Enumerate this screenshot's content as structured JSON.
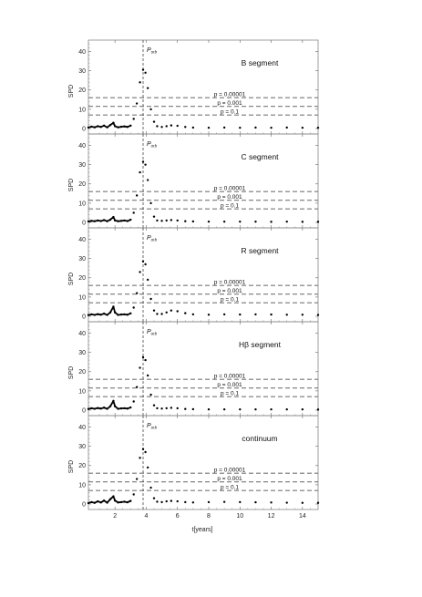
{
  "figure": {
    "xlabel": "t[years]",
    "ylabel": "SPD",
    "x_ticks": [
      "2",
      "4",
      "6",
      "8",
      "10",
      "12",
      "14"
    ],
    "y_ticks": [
      "0",
      "10",
      "20",
      "30",
      "40"
    ],
    "porb_label": "P",
    "porb_sub": "orb",
    "threshold_labels": [
      "p = 0.00001",
      "p = 0.001",
      "p = 0.1"
    ]
  },
  "chart_data": [
    {
      "type": "line",
      "title": "B segment",
      "xlim": [
        0.3,
        15
      ],
      "ylim": [
        0,
        45
      ],
      "porb": 3.8,
      "thresholds": [
        {
          "label": "p = 0.00001",
          "y": 16.0
        },
        {
          "label": "p = 0.001",
          "y": 11.5
        },
        {
          "label": "p = 0.1",
          "y": 7.0
        }
      ],
      "series": [
        {
          "values": [
            [
              0.3,
              0.5
            ],
            [
              0.5,
              1.0
            ],
            [
              0.7,
              0.6
            ],
            [
              0.9,
              1.2
            ],
            [
              1.1,
              0.8
            ],
            [
              1.3,
              1.5
            ],
            [
              1.5,
              0.6
            ],
            [
              1.7,
              1.8
            ],
            [
              1.9,
              3.0
            ],
            [
              2.0,
              1.2
            ],
            [
              2.2,
              0.6
            ],
            [
              2.4,
              0.9
            ],
            [
              2.6,
              1.1
            ],
            [
              2.8,
              0.8
            ],
            [
              3.0,
              1.5
            ],
            [
              3.2,
              5.0
            ],
            [
              3.4,
              13.0
            ],
            [
              3.6,
              24.0
            ],
            [
              3.8,
              30.5
            ],
            [
              3.95,
              29.0
            ],
            [
              4.1,
              21.0
            ],
            [
              4.3,
              10.0
            ],
            [
              4.5,
              3.5
            ],
            [
              4.7,
              1.2
            ],
            [
              5.0,
              0.8
            ],
            [
              5.3,
              1.2
            ],
            [
              5.6,
              1.6
            ],
            [
              6.0,
              1.4
            ],
            [
              6.5,
              0.8
            ],
            [
              7.0,
              0.5
            ],
            [
              8.0,
              0.4
            ],
            [
              9.0,
              0.5
            ],
            [
              10.0,
              0.4
            ],
            [
              11.0,
              0.5
            ],
            [
              12.0,
              0.4
            ],
            [
              13.0,
              0.5
            ],
            [
              14.0,
              0.4
            ],
            [
              15.0,
              0.4
            ]
          ]
        }
      ]
    },
    {
      "type": "line",
      "title": "C segment",
      "xlim": [
        0.3,
        15
      ],
      "ylim": [
        0,
        45
      ],
      "porb": 3.8,
      "thresholds": [
        {
          "label": "p = 0.00001",
          "y": 16.0
        },
        {
          "label": "p = 0.001",
          "y": 11.5
        },
        {
          "label": "p = 0.1",
          "y": 7.0
        }
      ],
      "series": [
        {
          "values": [
            [
              0.3,
              0.5
            ],
            [
              0.5,
              0.8
            ],
            [
              0.7,
              0.6
            ],
            [
              0.9,
              1.0
            ],
            [
              1.1,
              0.7
            ],
            [
              1.3,
              1.2
            ],
            [
              1.5,
              0.6
            ],
            [
              1.7,
              1.4
            ],
            [
              1.9,
              2.8
            ],
            [
              2.0,
              1.0
            ],
            [
              2.2,
              0.6
            ],
            [
              2.4,
              0.8
            ],
            [
              2.6,
              1.0
            ],
            [
              2.8,
              0.7
            ],
            [
              3.0,
              1.4
            ],
            [
              3.2,
              5.0
            ],
            [
              3.4,
              14.0
            ],
            [
              3.6,
              26.0
            ],
            [
              3.8,
              31.5
            ],
            [
              3.95,
              30.0
            ],
            [
              4.1,
              22.0
            ],
            [
              4.3,
              10.0
            ],
            [
              4.5,
              3.0
            ],
            [
              4.7,
              1.0
            ],
            [
              5.0,
              0.8
            ],
            [
              5.3,
              1.0
            ],
            [
              5.6,
              1.2
            ],
            [
              6.0,
              1.0
            ],
            [
              6.5,
              0.6
            ],
            [
              7.0,
              0.5
            ],
            [
              8.0,
              0.4
            ],
            [
              9.0,
              0.4
            ],
            [
              10.0,
              0.4
            ],
            [
              11.0,
              0.4
            ],
            [
              12.0,
              0.3
            ],
            [
              13.0,
              0.4
            ],
            [
              14.0,
              0.3
            ],
            [
              15.0,
              0.3
            ]
          ]
        }
      ]
    },
    {
      "type": "line",
      "title": "R segment",
      "xlim": [
        0.3,
        15
      ],
      "ylim": [
        0,
        45
      ],
      "porb": 3.8,
      "thresholds": [
        {
          "label": "p = 0.00001",
          "y": 16.0
        },
        {
          "label": "p = 0.001",
          "y": 11.5
        },
        {
          "label": "p = 0.1",
          "y": 7.0
        }
      ],
      "series": [
        {
          "values": [
            [
              0.3,
              0.6
            ],
            [
              0.5,
              1.0
            ],
            [
              0.7,
              0.7
            ],
            [
              0.9,
              1.1
            ],
            [
              1.1,
              0.8
            ],
            [
              1.3,
              1.4
            ],
            [
              1.5,
              0.7
            ],
            [
              1.7,
              2.0
            ],
            [
              1.9,
              5.0
            ],
            [
              2.0,
              2.0
            ],
            [
              2.2,
              0.7
            ],
            [
              2.4,
              0.9
            ],
            [
              2.6,
              1.0
            ],
            [
              2.8,
              0.8
            ],
            [
              3.0,
              1.5
            ],
            [
              3.2,
              4.5
            ],
            [
              3.4,
              12.0
            ],
            [
              3.6,
              23.0
            ],
            [
              3.8,
              28.5
            ],
            [
              3.95,
              27.0
            ],
            [
              4.1,
              19.0
            ],
            [
              4.3,
              9.0
            ],
            [
              4.5,
              3.0
            ],
            [
              4.7,
              1.2
            ],
            [
              5.0,
              1.2
            ],
            [
              5.3,
              2.0
            ],
            [
              5.6,
              3.0
            ],
            [
              6.0,
              2.6
            ],
            [
              6.5,
              1.6
            ],
            [
              7.0,
              1.0
            ],
            [
              8.0,
              0.8
            ],
            [
              9.0,
              1.0
            ],
            [
              10.0,
              0.9
            ],
            [
              11.0,
              1.0
            ],
            [
              12.0,
              0.9
            ],
            [
              13.0,
              0.8
            ],
            [
              14.0,
              0.8
            ],
            [
              15.0,
              0.7
            ]
          ]
        }
      ]
    },
    {
      "type": "line",
      "title": "Hβ segment",
      "xlim": [
        0.3,
        15
      ],
      "ylim": [
        0,
        45
      ],
      "porb": 3.8,
      "thresholds": [
        {
          "label": "p = 0.00001",
          "y": 16.0
        },
        {
          "label": "p = 0.001",
          "y": 11.5
        },
        {
          "label": "p = 0.1",
          "y": 7.0
        }
      ],
      "series": [
        {
          "values": [
            [
              0.3,
              0.6
            ],
            [
              0.5,
              1.0
            ],
            [
              0.7,
              0.7
            ],
            [
              0.9,
              1.1
            ],
            [
              1.1,
              0.8
            ],
            [
              1.3,
              1.3
            ],
            [
              1.5,
              0.7
            ],
            [
              1.7,
              2.0
            ],
            [
              1.9,
              4.8
            ],
            [
              2.0,
              2.0
            ],
            [
              2.2,
              0.7
            ],
            [
              2.4,
              0.9
            ],
            [
              2.6,
              1.0
            ],
            [
              2.8,
              0.8
            ],
            [
              3.0,
              1.4
            ],
            [
              3.2,
              4.5
            ],
            [
              3.4,
              12.0
            ],
            [
              3.6,
              22.0
            ],
            [
              3.8,
              27.5
            ],
            [
              3.95,
              26.0
            ],
            [
              4.1,
              18.0
            ],
            [
              4.3,
              8.0
            ],
            [
              4.5,
              2.5
            ],
            [
              4.7,
              1.0
            ],
            [
              5.0,
              0.8
            ],
            [
              5.3,
              1.0
            ],
            [
              5.6,
              1.2
            ],
            [
              6.0,
              1.0
            ],
            [
              6.5,
              0.6
            ],
            [
              7.0,
              0.5
            ],
            [
              8.0,
              0.4
            ],
            [
              9.0,
              0.4
            ],
            [
              10.0,
              0.4
            ],
            [
              11.0,
              0.4
            ],
            [
              12.0,
              0.4
            ],
            [
              13.0,
              0.4
            ],
            [
              14.0,
              0.4
            ],
            [
              15.0,
              0.3
            ]
          ]
        }
      ]
    },
    {
      "type": "line",
      "title": "continuum",
      "xlim": [
        0.3,
        15
      ],
      "ylim": [
        0,
        45
      ],
      "porb": 3.8,
      "thresholds": [
        {
          "label": "p = 0.00001",
          "y": 16.0
        },
        {
          "label": "p = 0.001",
          "y": 11.5
        },
        {
          "label": "p = 0.1",
          "y": 7.0
        }
      ],
      "series": [
        {
          "values": [
            [
              0.3,
              0.5
            ],
            [
              0.5,
              1.0
            ],
            [
              0.7,
              0.6
            ],
            [
              0.9,
              1.4
            ],
            [
              1.1,
              0.8
            ],
            [
              1.3,
              1.8
            ],
            [
              1.5,
              0.7
            ],
            [
              1.7,
              2.5
            ],
            [
              1.9,
              4.0
            ],
            [
              2.0,
              1.8
            ],
            [
              2.2,
              0.8
            ],
            [
              2.4,
              1.0
            ],
            [
              2.6,
              1.2
            ],
            [
              2.8,
              0.9
            ],
            [
              3.0,
              1.6
            ],
            [
              3.2,
              5.0
            ],
            [
              3.4,
              13.0
            ],
            [
              3.6,
              24.0
            ],
            [
              3.8,
              28.5
            ],
            [
              3.95,
              27.0
            ],
            [
              4.1,
              19.0
            ],
            [
              4.3,
              8.5
            ],
            [
              4.5,
              3.0
            ],
            [
              4.7,
              1.2
            ],
            [
              5.0,
              1.0
            ],
            [
              5.3,
              1.4
            ],
            [
              5.6,
              1.6
            ],
            [
              6.0,
              1.4
            ],
            [
              6.5,
              1.0
            ],
            [
              7.0,
              0.8
            ],
            [
              8.0,
              1.0
            ],
            [
              9.0,
              1.1
            ],
            [
              10.0,
              1.0
            ],
            [
              11.0,
              0.9
            ],
            [
              12.0,
              0.8
            ],
            [
              13.0,
              0.7
            ],
            [
              14.0,
              0.6
            ],
            [
              15.0,
              0.6
            ]
          ]
        }
      ]
    }
  ]
}
